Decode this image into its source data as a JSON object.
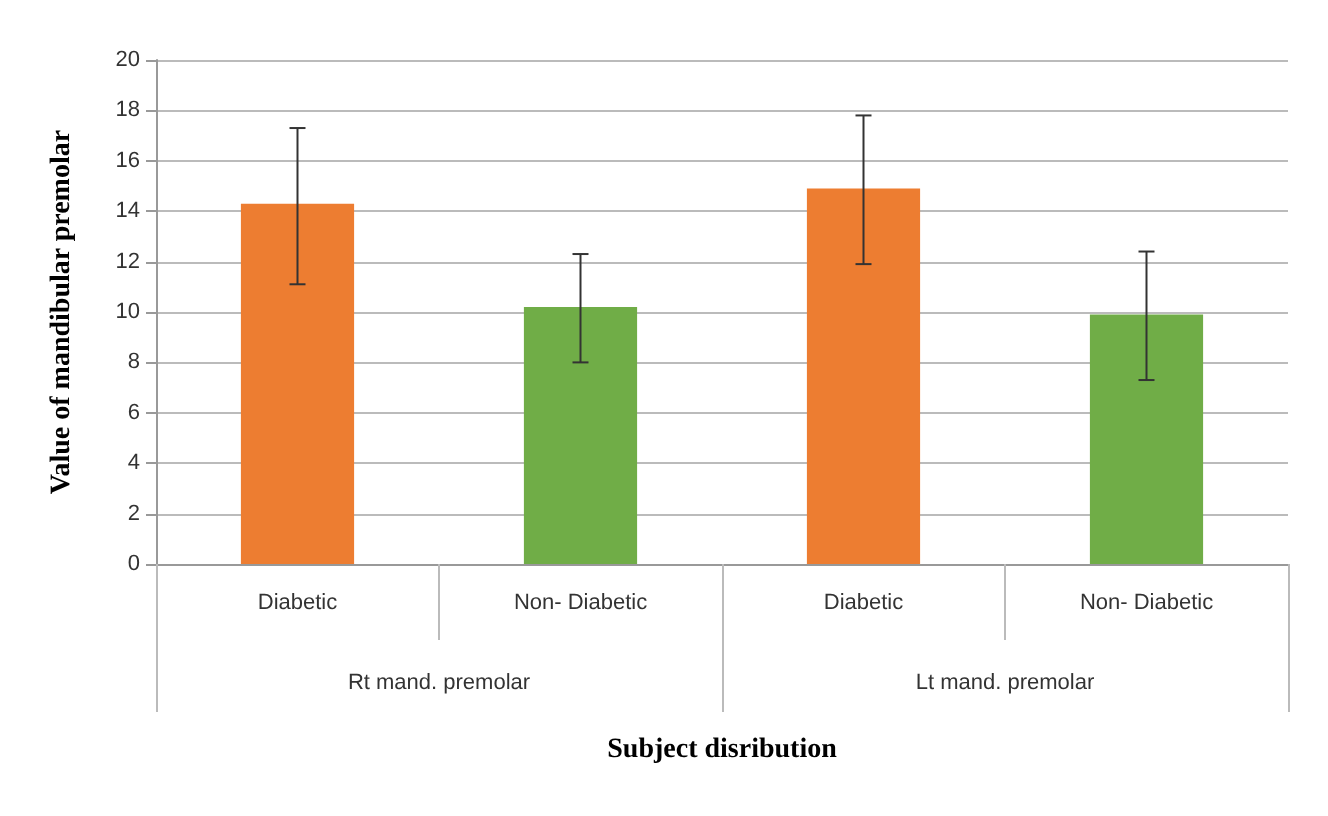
{
  "chart_data": {
    "type": "bar",
    "xlabel": "Subject disribution",
    "ylabel": "Value of mandibular premolar",
    "categories": [
      "Diabetic",
      "Non- Diabetic",
      "Diabetic",
      "Non- Diabetic"
    ],
    "values": [
      14.3,
      10.2,
      14.9,
      9.9
    ],
    "colors": [
      "#ed7d31",
      "#70ad47",
      "#ed7d31",
      "#70ad47"
    ],
    "errors": [
      [
        11.1,
        17.3
      ],
      [
        8.0,
        12.3
      ],
      [
        11.9,
        17.8
      ],
      [
        7.3,
        12.4
      ]
    ],
    "annotations": [
      "Rt mand. premolar",
      "Lt mand. premolar"
    ],
    "ylim": [
      0,
      20
    ],
    "yticks": [
      0,
      2,
      4,
      6,
      8,
      10,
      12,
      14,
      16,
      18,
      20
    ],
    "grid": "y"
  }
}
